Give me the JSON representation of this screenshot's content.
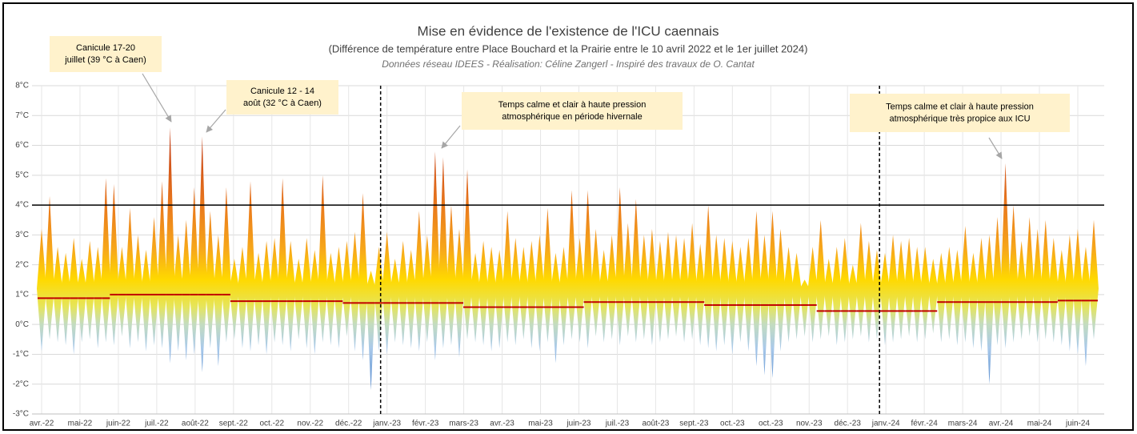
{
  "chart_data": {
    "type": "range",
    "title": "Mise en évidence de l'existence de l'ICU caennais",
    "subtitle": "(Différence de température entre Place Bouchard et la Prairie entre le 10 avril 2022 et le 1er juillet 2024)",
    "caption": "Données réseau IDEES - Réalisation:  Céline Zangerl - Inspiré des travaux de O. Cantat",
    "xticks": [
      "avr.-22",
      "mai-22",
      "juin-22",
      "juil.-22",
      "août-22",
      "sept.-22",
      "oct.-22",
      "nov.-22",
      "déc.-22",
      "janv.-23",
      "févr.-23",
      "mars-23",
      "avr.-23",
      "mai-23",
      "juin-23",
      "juil.-23",
      "août-23",
      "sept.-23",
      "oct.-23",
      "oct.-23",
      "nov.-23",
      "déc.-23",
      "janv.-24",
      "févr.-24",
      "mars-24",
      "avr.-24",
      "mai-24",
      "juin-24"
    ],
    "ylim": [
      -3,
      8
    ],
    "yticks": [
      {
        "value": -3,
        "label": "-3°C"
      },
      {
        "value": -2,
        "label": "-2°C"
      },
      {
        "value": -1,
        "label": "-1°C"
      },
      {
        "value": 0,
        "label": "0°C"
      },
      {
        "value": 1,
        "label": "1°C"
      },
      {
        "value": 2,
        "label": "2°C"
      },
      {
        "value": 3,
        "label": "3°C"
      },
      {
        "value": 4,
        "label": "4°C"
      },
      {
        "value": 5,
        "label": "5°C"
      },
      {
        "value": 6,
        "label": "6°C"
      },
      {
        "value": 7,
        "label": "7°C"
      },
      {
        "value": 8,
        "label": "8°C"
      }
    ],
    "grid": true,
    "reference_line": 4,
    "year_marks": [
      "janv.-23",
      "janv.-24"
    ],
    "color_scale": [
      {
        "value": 6,
        "color": "#c8461a"
      },
      {
        "value": 4,
        "color": "#e9781c"
      },
      {
        "value": 2.5,
        "color": "#f7a81a"
      },
      {
        "value": 1.5,
        "color": "#ffd900"
      },
      {
        "value": 0.6,
        "color": "#e6e55a"
      },
      {
        "value": 0,
        "color": "#c3dcc0"
      },
      {
        "value": -0.8,
        "color": "#a9c9ea"
      },
      {
        "value": -2.2,
        "color": "#4f86cc"
      }
    ],
    "series": [
      {
        "name": "max",
        "values": [
          3.2,
          4.3,
          2.6,
          2.4,
          2.9,
          2.2,
          2.8,
          2.6,
          4.9,
          4.7,
          2.6,
          3.9,
          3.0,
          2.5,
          3.6,
          4.8,
          6.6,
          3.0,
          3.5,
          4.6,
          6.3,
          3.8,
          3.0,
          4.6,
          2.2,
          2.6,
          4.8,
          2.4,
          2.8,
          2.9,
          4.9,
          2.8,
          2.2,
          2.9,
          2.5,
          5.0,
          2.4,
          2.6,
          2.8,
          3.1,
          4.4,
          1.8,
          2.6,
          3.1,
          2.2,
          2.8,
          2.5,
          3.8,
          3.0,
          5.8,
          5.6,
          4.0,
          3.2,
          5.2,
          2.4,
          2.8,
          2.6,
          2.5,
          3.8,
          2.9,
          2.6,
          2.8,
          3.0,
          3.9,
          2.4,
          2.6,
          4.5,
          2.9,
          4.5,
          3.2,
          2.5,
          3.0,
          4.6,
          3.4,
          4.2,
          3.0,
          3.2,
          2.8,
          3.1,
          3.0,
          2.9,
          3.4,
          2.7,
          4.0,
          3.0,
          2.9,
          2.8,
          2.6,
          2.9,
          3.8,
          3.0,
          3.8,
          3.2,
          2.6,
          2.4,
          1.5,
          2.6,
          3.5,
          2.2,
          2.6,
          2.9,
          2.0,
          3.4,
          2.8,
          2.5,
          2.4,
          3.0,
          2.8,
          2.9,
          2.6,
          2.6,
          2.2,
          2.4,
          2.6,
          2.5,
          3.3,
          2.4,
          2.9,
          3.0,
          3.6,
          5.4,
          4.0,
          2.8,
          3.6,
          3.2,
          3.5,
          2.9,
          2.5,
          3.0,
          3.2,
          2.6,
          3.5
        ]
      },
      {
        "name": "min",
        "values": [
          -0.9,
          -0.5,
          -0.6,
          -0.7,
          -1.0,
          -0.6,
          -0.5,
          -0.8,
          -0.6,
          -0.7,
          -0.4,
          -0.8,
          -0.6,
          -0.9,
          -0.7,
          -0.8,
          -1.3,
          -0.9,
          -1.2,
          -1.0,
          -1.6,
          -0.8,
          -1.4,
          -0.6,
          -0.5,
          -0.8,
          -0.9,
          -0.7,
          -1.0,
          -0.6,
          -0.7,
          -0.9,
          -0.5,
          -0.8,
          -1.0,
          -0.6,
          -0.7,
          -0.8,
          -0.4,
          -0.9,
          -1.2,
          -2.2,
          -0.9,
          -1.0,
          -0.6,
          -0.7,
          -0.8,
          -0.9,
          -0.6,
          -1.2,
          -0.8,
          -0.7,
          -1.1,
          -0.5,
          -0.6,
          -0.7,
          -0.9,
          -0.8,
          -0.6,
          -0.7,
          -0.5,
          -0.8,
          -0.9,
          -0.6,
          -1.3,
          -0.7,
          -0.5,
          -0.6,
          -0.8,
          -0.4,
          -0.6,
          -0.5,
          -0.7,
          -0.4,
          -0.6,
          -0.5,
          -0.7,
          -0.6,
          -0.5,
          -0.4,
          -0.6,
          -0.5,
          -0.7,
          -0.8,
          -0.9,
          -0.7,
          -1.0,
          -0.6,
          -0.9,
          -1.4,
          -1.7,
          -1.8,
          -0.9,
          -0.6,
          -0.5,
          -0.4,
          -0.6,
          -0.5,
          -0.4,
          -0.7,
          -0.6,
          -0.5,
          -0.4,
          -0.6,
          -0.5,
          -0.7,
          -0.6,
          -0.5,
          -0.4,
          -0.6,
          -0.5,
          -0.3,
          -0.6,
          -0.5,
          -0.7,
          -0.6,
          -0.8,
          -0.9,
          -2.0,
          -0.7,
          -0.8,
          -0.6,
          -0.5,
          -0.4,
          -0.6,
          -0.5,
          -0.6,
          -0.7,
          -0.9,
          -1.0,
          -1.4,
          -0.5
        ]
      },
      {
        "name": "moyenne",
        "color": "#c00000",
        "values": [
          0.88,
          0.88,
          0.88,
          0.88,
          0.88,
          0.88,
          0.88,
          0.88,
          0.88,
          1.0,
          1.0,
          1.0,
          1.0,
          1.0,
          1.0,
          1.0,
          1.0,
          1.0,
          1.0,
          1.0,
          1.0,
          1.0,
          1.0,
          1.0,
          0.78,
          0.78,
          0.78,
          0.78,
          0.78,
          0.78,
          0.78,
          0.78,
          0.78,
          0.78,
          0.78,
          0.78,
          0.78,
          0.78,
          0.72,
          0.72,
          0.72,
          0.72,
          0.72,
          0.72,
          0.72,
          0.72,
          0.72,
          0.72,
          0.72,
          0.72,
          0.72,
          0.72,
          0.72,
          0.58,
          0.58,
          0.58,
          0.58,
          0.58,
          0.58,
          0.58,
          0.58,
          0.58,
          0.58,
          0.58,
          0.58,
          0.58,
          0.58,
          0.58,
          0.75,
          0.75,
          0.75,
          0.75,
          0.75,
          0.75,
          0.75,
          0.75,
          0.75,
          0.75,
          0.75,
          0.75,
          0.75,
          0.75,
          0.75,
          0.65,
          0.65,
          0.65,
          0.65,
          0.65,
          0.65,
          0.65,
          0.65,
          0.65,
          0.65,
          0.65,
          0.65,
          0.65,
          0.65,
          0.45,
          0.45,
          0.45,
          0.45,
          0.45,
          0.45,
          0.45,
          0.45,
          0.45,
          0.45,
          0.45,
          0.45,
          0.45,
          0.45,
          0.45,
          0.75,
          0.75,
          0.75,
          0.75,
          0.75,
          0.75,
          0.75,
          0.75,
          0.75,
          0.75,
          0.75,
          0.75,
          0.75,
          0.75,
          0.75,
          0.8,
          0.8,
          0.8,
          0.8,
          0.8
        ]
      }
    ],
    "annotations": [
      {
        "lines": [
          "Canicule 17-20",
          "juillet (39 °C à Caen)"
        ]
      },
      {
        "lines": [
          "Canicule 12 - 14",
          "août (32 °C à Caen)"
        ]
      },
      {
        "lines": [
          "Temps calme et clair à haute pression",
          "atmosphérique en période hivernale"
        ]
      },
      {
        "lines": [
          "Temps calme et clair à haute pression",
          "atmosphérique très propice aux ICU"
        ]
      }
    ]
  }
}
